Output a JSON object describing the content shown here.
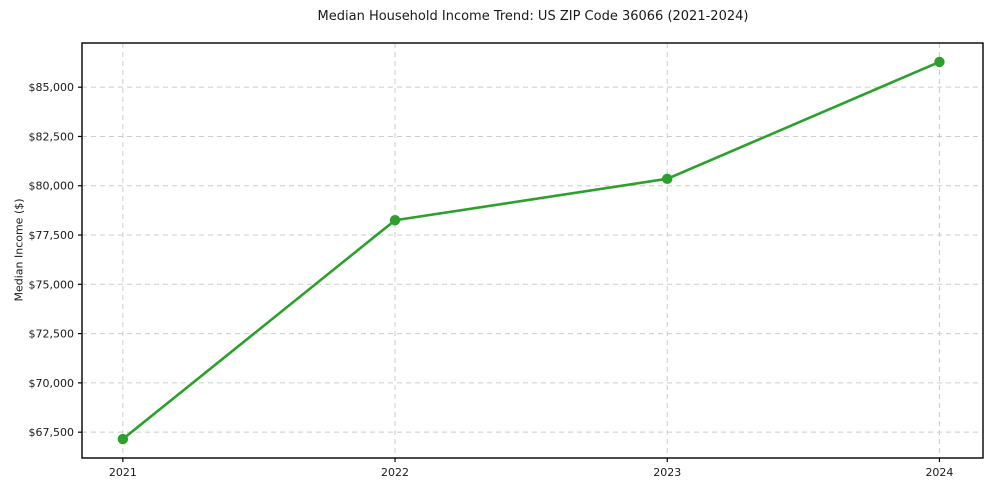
{
  "chart_data": {
    "type": "line",
    "title": "Median Household Income Trend: US ZIP Code 36066 (2021-2024)",
    "xlabel": "",
    "ylabel": "Median Income ($)",
    "x": [
      2021,
      2022,
      2023,
      2024
    ],
    "x_tick_labels": [
      "2021",
      "2022",
      "2023",
      "2024"
    ],
    "y": [
      67150,
      78250,
      80350,
      86280
    ],
    "y_ticks": [
      67500,
      70000,
      72500,
      75000,
      77500,
      80000,
      82500,
      85000
    ],
    "y_tick_labels": [
      "$67,500",
      "$70,000",
      "$72,500",
      "$75,000",
      "$77,500",
      "$80,000",
      "$82,500",
      "$85,000"
    ],
    "xlim": [
      2020.85,
      2024.16
    ],
    "ylim": [
      66190,
      87240
    ],
    "grid": true,
    "grid_style": "dashed",
    "legend_position": "none",
    "marker": "circle"
  },
  "colors": {
    "line": "#2ca02c",
    "grid": "#cccccc",
    "spine": "#000000",
    "text": "#1a1a1a",
    "background": "#ffffff"
  }
}
